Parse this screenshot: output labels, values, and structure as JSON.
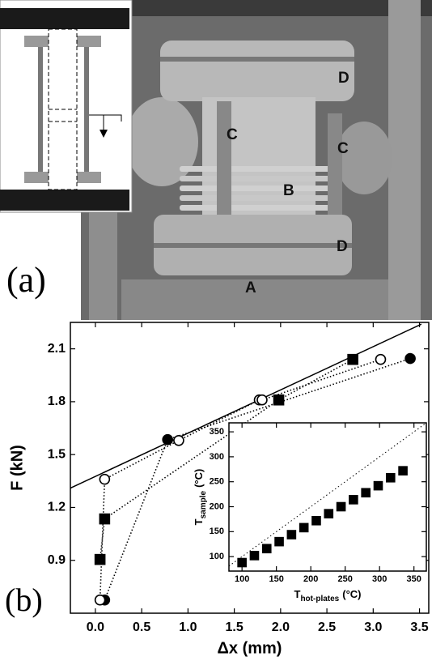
{
  "photo": {
    "labels": [
      "D",
      "C",
      "C",
      "B",
      "D",
      "A"
    ],
    "panel_label": "(a)"
  },
  "chart_data": [
    {
      "type": "scatter",
      "panel_label": "(b)",
      "xlabel": "Δx (mm)",
      "ylabel": "F (kN)",
      "xlim": [
        -0.27,
        3.6
      ],
      "ylim": [
        0.6,
        2.25
      ],
      "xticks": [
        {
          "value": 0,
          "label": "0.0"
        },
        0.5,
        {
          "value": 1,
          "label": "1.0"
        },
        1.5,
        {
          "value": 2,
          "label": "2.0"
        },
        2.5,
        {
          "value": 3,
          "label": "3.0"
        },
        3.5
      ],
      "yticks": [
        0.9,
        1.2,
        1.5,
        1.8,
        2.1
      ],
      "series": [
        {
          "marker": "square",
          "filled": true,
          "line_style": "dotted",
          "color": "#000000",
          "x": [
            0.05,
            0.1,
            1.98,
            2.78
          ],
          "values": [
            0.905,
            1.135,
            1.81,
            2.04
          ]
        },
        {
          "marker": "circle",
          "filled": true,
          "line_style": "dotted",
          "color": "#000000",
          "x": [
            0.1,
            0.78,
            3.4
          ],
          "values": [
            0.675,
            1.585,
            2.045
          ]
        },
        {
          "marker": "circle",
          "filled": false,
          "line_style": "dotted",
          "color": "#000000",
          "x": [
            0.05,
            0.1,
            0.9,
            1.77,
            1.8,
            3.08
          ],
          "values": [
            0.675,
            1.36,
            1.58,
            1.81,
            1.81,
            2.04
          ]
        }
      ],
      "fit": {
        "x": [
          -0.27,
          3.52
        ],
        "values": [
          1.31,
          2.24
        ],
        "color": "#000000"
      }
    },
    {
      "type": "scatter",
      "xlabel": {
        "symbol": "T",
        "subscript": "hot-plates",
        "unit": "(°C)"
      },
      "ylabel": {
        "symbol": "T",
        "subscript": "sample",
        "unit": "(°C)"
      },
      "xlim": [
        81,
        368
      ],
      "ylim": [
        71,
        368
      ],
      "diagonal": true,
      "xticks": [
        100,
        150,
        200,
        250,
        300,
        350
      ],
      "yticks": [
        100,
        150,
        200,
        250,
        300,
        350
      ],
      "series": [
        {
          "marker": "square",
          "filled": true,
          "color": "#000000",
          "x": [
            100,
            118,
            136,
            154,
            172,
            190,
            208,
            226,
            244,
            262,
            280,
            298,
            316,
            334
          ],
          "values": [
            88,
            102,
            116,
            130,
            144,
            158,
            172,
            186,
            200,
            214,
            228,
            242,
            258,
            272
          ]
        }
      ]
    }
  ]
}
